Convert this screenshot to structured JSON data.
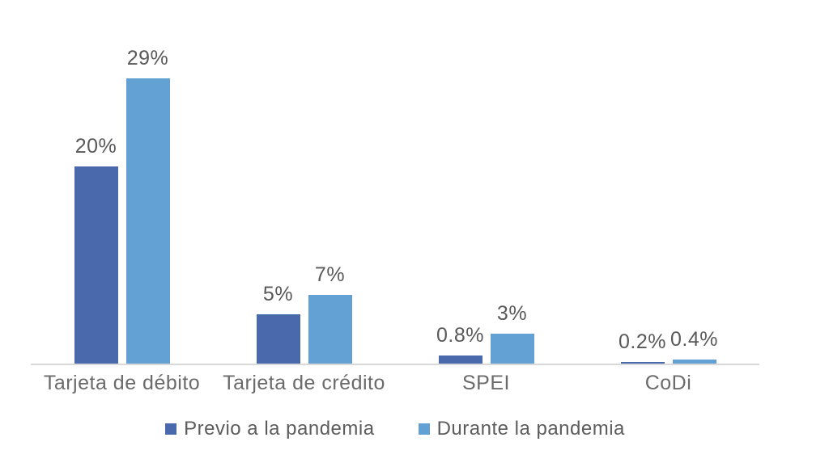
{
  "chart_data": {
    "type": "bar",
    "title": "",
    "xlabel": "",
    "ylabel": "",
    "categories": [
      "Tarjeta de débito",
      "Tarjeta de crédito",
      "SPEI",
      "CoDi"
    ],
    "series": [
      {
        "name": "Previo a la pandemia",
        "color": "#4a68ac",
        "values": [
          20,
          5,
          0.8,
          0.2
        ],
        "value_labels": [
          "20%",
          "5%",
          "0.8%",
          "0.2%"
        ]
      },
      {
        "name": "Durante la pandemia",
        "color": "#63a0d4",
        "values": [
          29,
          7,
          3,
          0.4
        ],
        "value_labels": [
          "29%",
          "7%",
          "3%",
          "0.4%"
        ]
      }
    ],
    "ylim": [
      0,
      32
    ],
    "y_axis_visible": false,
    "grid": false,
    "legend_position": "bottom",
    "colors": {
      "background": "#ffffff",
      "axis_line": "#d9d9d9",
      "value_label": "#595959",
      "category_label": "#6b6b6b",
      "legend_text": "#5c5c5c"
    }
  }
}
